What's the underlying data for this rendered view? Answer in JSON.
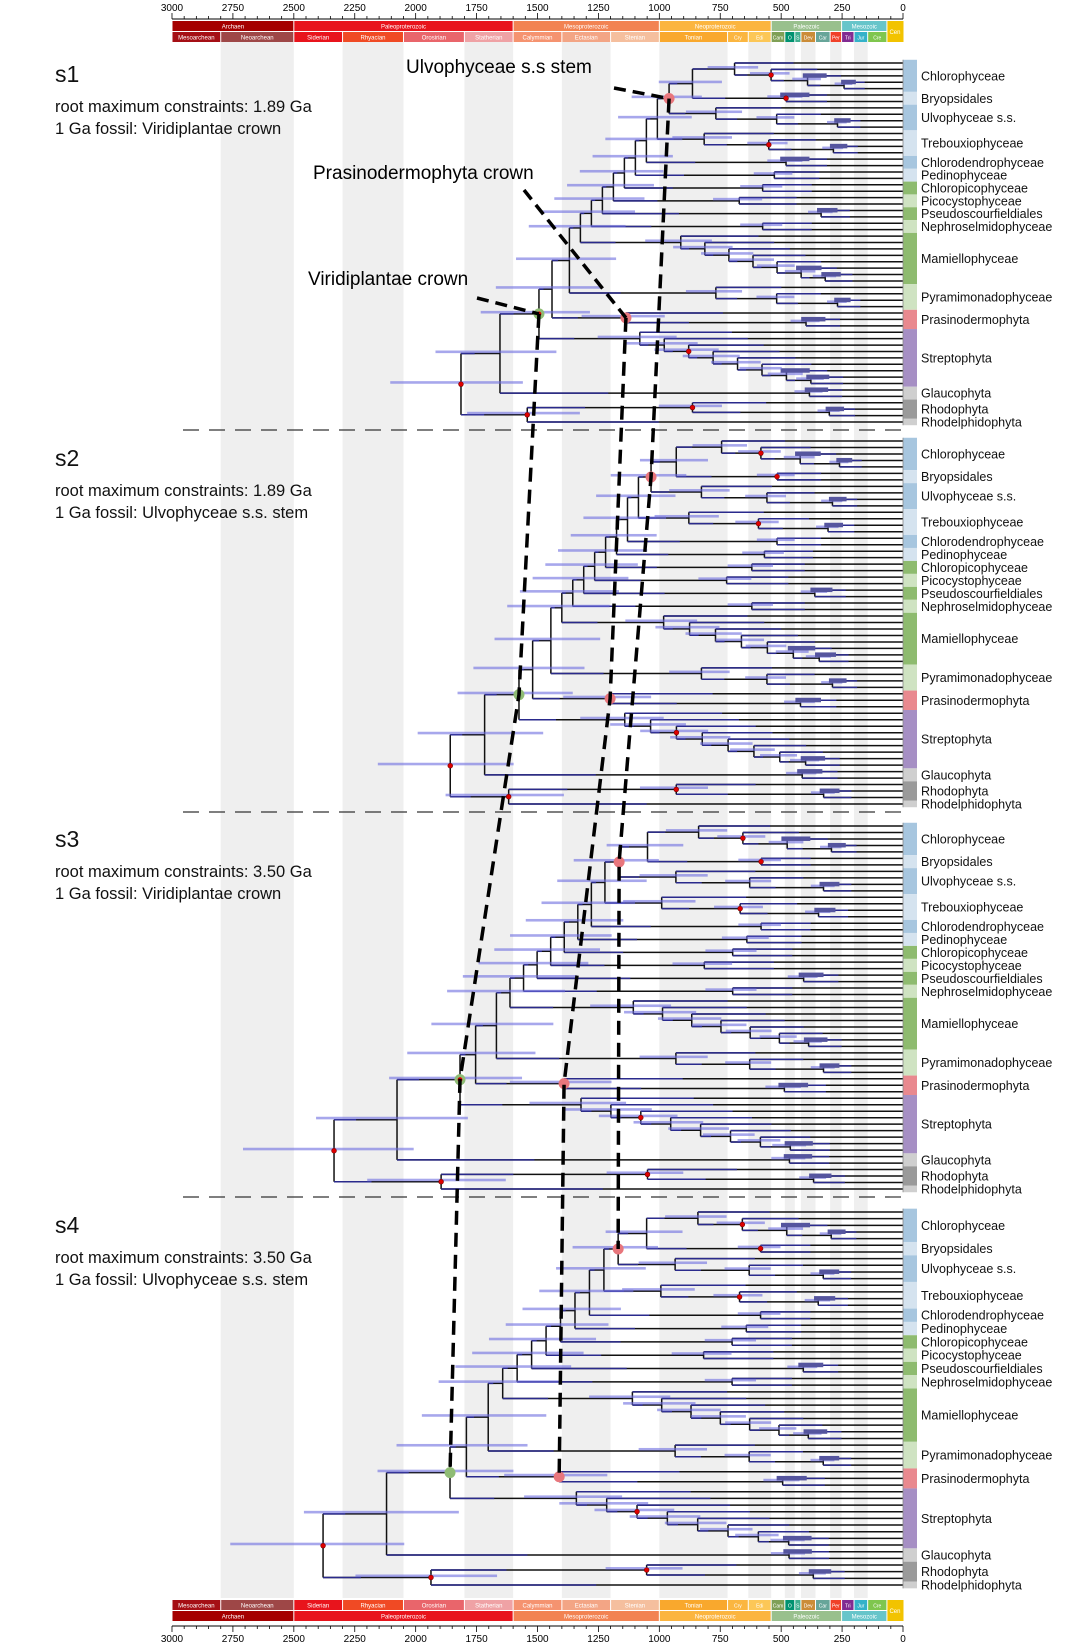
{
  "axis": {
    "unit": "Ma",
    "ticks": [
      3000,
      2750,
      2500,
      2250,
      2000,
      1750,
      1500,
      1250,
      1000,
      750,
      500,
      250,
      0
    ],
    "domain": [
      3000,
      0
    ]
  },
  "timescale": {
    "eras": [
      {
        "name": "Archaen",
        "start": 3000,
        "end": 2500,
        "color": "#a50000"
      },
      {
        "name": "Paleoproterozoic",
        "start": 2500,
        "end": 1600,
        "color": "#e8141c"
      },
      {
        "name": "Mesoproterozoic",
        "start": 1600,
        "end": 1000,
        "color": "#f28352"
      },
      {
        "name": "Neoproterozoic",
        "start": 1000,
        "end": 541,
        "color": "#fbb540"
      },
      {
        "name": "Paleozoic",
        "start": 541,
        "end": 252,
        "color": "#99c08d"
      },
      {
        "name": "Mesozoic",
        "start": 252,
        "end": 66,
        "color": "#67c5ca"
      }
    ],
    "cenozoic": {
      "name": "Cen",
      "start": 66,
      "end": 0,
      "color": "#f2c300"
    },
    "periods": [
      {
        "name": "Mesoarchean",
        "start": 3000,
        "end": 2800,
        "color": "#a50f15"
      },
      {
        "name": "Neoarchean",
        "start": 2800,
        "end": 2500,
        "color": "#9e4747"
      },
      {
        "name": "Siderian",
        "start": 2500,
        "end": 2300,
        "color": "#e8141c"
      },
      {
        "name": "Rhyacian",
        "start": 2300,
        "end": 2050,
        "color": "#f04a24"
      },
      {
        "name": "Orosirian",
        "start": 2050,
        "end": 1800,
        "color": "#e9656b"
      },
      {
        "name": "Statherian",
        "start": 1800,
        "end": 1600,
        "color": "#efa2a5"
      },
      {
        "name": "Calymmian",
        "start": 1600,
        "end": 1400,
        "color": "#f59370"
      },
      {
        "name": "Ectasian",
        "start": 1400,
        "end": 1200,
        "color": "#f3a585"
      },
      {
        "name": "Stenian",
        "start": 1200,
        "end": 1000,
        "color": "#f5bf9e"
      },
      {
        "name": "Tonian",
        "start": 1000,
        "end": 720,
        "color": "#f9a82d"
      },
      {
        "name": "Cry",
        "start": 720,
        "end": 635,
        "color": "#fbb640"
      },
      {
        "name": "Edi",
        "start": 635,
        "end": 541,
        "color": "#fcc757"
      },
      {
        "name": "Cam",
        "start": 541,
        "end": 485,
        "color": "#7fa056"
      },
      {
        "name": "O",
        "start": 485,
        "end": 444,
        "color": "#009270"
      },
      {
        "name": "S",
        "start": 444,
        "end": 419,
        "color": "#3fae8f"
      },
      {
        "name": "Dev",
        "start": 419,
        "end": 359,
        "color": "#cb8c37"
      },
      {
        "name": "Car",
        "start": 359,
        "end": 299,
        "color": "#67a599"
      },
      {
        "name": "Per",
        "start": 299,
        "end": 252,
        "color": "#f04028"
      },
      {
        "name": "Tri",
        "start": 252,
        "end": 201,
        "color": "#812b92"
      },
      {
        "name": "Jur",
        "start": 201,
        "end": 145,
        "color": "#34b2c9"
      },
      {
        "name": "Cre",
        "start": 145,
        "end": 66,
        "color": "#7fc64e"
      }
    ],
    "shaded_intervals": [
      [
        2800,
        2500
      ],
      [
        2300,
        2050
      ],
      [
        1800,
        1600
      ],
      [
        1400,
        1200
      ],
      [
        1000,
        720
      ],
      [
        635,
        541
      ],
      [
        485,
        444
      ],
      [
        419,
        359
      ],
      [
        299,
        252
      ],
      [
        201,
        145
      ]
    ]
  },
  "annotations": {
    "ulvophyceae_stem": "Ulvophyceae s.s  stem",
    "prasinodermophyta_crown": "Prasinodermophyta crown",
    "viridiplantae_crown": "Viridiplantae crown"
  },
  "marker_colors": {
    "stem_crown": "#e8767c",
    "viridiplantae": "#8fbc75",
    "calibration": "#e00000",
    "hpd": "#6d6de0",
    "branch": "#111111"
  },
  "clades": [
    {
      "name": "Chlorophyceae",
      "color": "#a7c6df"
    },
    {
      "name": "Bryopsidales",
      "color": "#d5e3ef"
    },
    {
      "name": "Ulvophyceae s.s.",
      "color": "#a7c6df"
    },
    {
      "name": "Trebouxiophyceae",
      "color": "#d5e3ef"
    },
    {
      "name": "Chlorodendrophyceae",
      "color": "#a7c6df"
    },
    {
      "name": "Pedinophyceae",
      "color": "#d5e3ef"
    },
    {
      "name": "Chloropicophyceae",
      "color": "#8ebb6f"
    },
    {
      "name": "Picocystophyceae",
      "color": "#cfe3c2"
    },
    {
      "name": "Pseudoscourfieldiales",
      "color": "#8ebb6f"
    },
    {
      "name": "Nephroselmidophyceae",
      "color": "#cfe3c2"
    },
    {
      "name": "Mamiellophyceae",
      "color": "#8ebb6f"
    },
    {
      "name": "Pyramimonadophyceae",
      "color": "#cfe3c2"
    },
    {
      "name": "Prasinodermophyta",
      "color": "#e9898f"
    },
    {
      "name": "Streptophyta",
      "color": "#a68fc4"
    },
    {
      "name": "Glaucophyta",
      "color": "#cfcfcf"
    },
    {
      "name": "Rhodophyta",
      "color": "#9a9a9a"
    },
    {
      "name": "Rhodelphidophyta",
      "color": "#cfcfcf"
    }
  ],
  "panels": [
    {
      "label": "s1",
      "root_constraint": "root maximum constraints: 1.89 Ga",
      "fossil": "1 Ga fossil: Viridiplantae crown",
      "node_ages": {
        "root": 1814,
        "viridiplantae_crown": 1494,
        "prasinodermophyta_crown": 1137,
        "ulvophyceae_ss_stem": 960
      }
    },
    {
      "label": "s2",
      "root_constraint": "root maximum constraints: 1.89 Ga",
      "fossil": "1 Ga fossil: Ulvophyceae s.s. stem",
      "node_ages": {
        "root": 1858,
        "viridiplantae_crown": 1576,
        "prasinodermophyta_crown": 1202,
        "ulvophyceae_ss_stem": 1034
      }
    },
    {
      "label": "s3",
      "root_constraint": "root maximum constraints: 3.50 Ga",
      "fossil": "1 Ga fossil: Viridiplantae crown",
      "node_ages": {
        "root": 2335,
        "viridiplantae_crown": 1818,
        "prasinodermophyta_crown": 1391,
        "ulvophyceae_ss_stem": 1165
      }
    },
    {
      "label": "s4",
      "root_constraint": "root maximum constraints: 3.50 Ga",
      "fossil": "1 Ga fossil: Ulvophyceae s.s. stem",
      "node_ages": {
        "root": 2380,
        "viridiplantae_crown": 1859,
        "prasinodermophyta_crown": 1411,
        "ulvophyceae_ss_stem": 1169
      }
    }
  ]
}
